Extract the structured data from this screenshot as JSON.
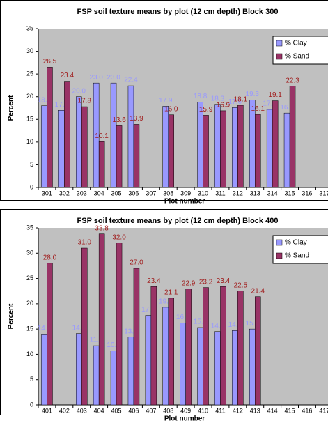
{
  "chart_data": [
    {
      "type": "bar",
      "title": "FSP soil texture means by plot (12 cm depth) Block 300",
      "x_label": "Plot number",
      "y_label": "Percent",
      "categories": [
        "301",
        "302",
        "303",
        "304",
        "305",
        "306",
        "307",
        "308",
        "309",
        "310",
        "311",
        "312",
        "313",
        "314",
        "315",
        "316",
        "317"
      ],
      "series": [
        {
          "name": "% Clay",
          "color": "#9999ff",
          "label_color": "#9999ff",
          "values": [
            18.0,
            17.0,
            20.0,
            23.0,
            23.0,
            22.4,
            null,
            17.9,
            null,
            18.8,
            18.3,
            17.6,
            19.3,
            17.2,
            16.4,
            null,
            null
          ],
          "value_labels": [
            "18.0",
            "17.0",
            "20.0",
            "23.0",
            "23.0",
            "22.4",
            null,
            "17.9",
            null,
            "18.8",
            "18.3",
            "17.6",
            "19.3",
            "17.2",
            "16.4",
            null,
            null
          ]
        },
        {
          "name": "% Sand",
          "color": "#993366",
          "label_color": "#a01c1c",
          "values": [
            26.5,
            23.4,
            17.8,
            10.1,
            13.6,
            13.9,
            null,
            16.0,
            null,
            15.9,
            16.9,
            18.1,
            16.1,
            19.1,
            22.3,
            null,
            null
          ],
          "value_labels": [
            "26.5",
            "23.4",
            "17.8",
            "10.1",
            "13.6",
            "13.9",
            null,
            "16.0",
            null,
            "15.9",
            "16.9",
            "18.1",
            "16.1",
            "19.1",
            "22.3",
            null,
            null
          ]
        }
      ],
      "ylim": [
        0,
        35
      ],
      "yticks": [
        0,
        5,
        10,
        15,
        20,
        25,
        30,
        35
      ],
      "legend": "upper-right"
    },
    {
      "type": "bar",
      "title": "FSP soil texture means by plot (12 cm depth) Block 400",
      "x_label": "Plot number",
      "y_label": "Percent",
      "categories": [
        "401",
        "402",
        "403",
        "404",
        "405",
        "406",
        "407",
        "408",
        "409",
        "410",
        "411",
        "412",
        "413",
        "414",
        "415",
        "416",
        "417"
      ],
      "series": [
        {
          "name": "% Clay",
          "color": "#9999ff",
          "label_color": "#9999ff",
          "values": [
            14.0,
            null,
            14.1,
            11.7,
            10.7,
            13.4,
            17.7,
            19.3,
            16.2,
            15.3,
            14.5,
            14.7,
            15.0,
            null,
            null,
            null,
            null
          ],
          "value_labels": [
            "14.0",
            null,
            "14.1",
            "11.7",
            "10.7",
            "13.4",
            "17.7",
            "19.3",
            "16.2",
            "15.3",
            "14.5",
            "14.7",
            "15.0",
            null,
            null,
            null,
            null
          ]
        },
        {
          "name": "% Sand",
          "color": "#993366",
          "label_color": "#a01c1c",
          "values": [
            28.0,
            null,
            31.0,
            33.8,
            32.0,
            27.0,
            23.4,
            21.1,
            22.9,
            23.2,
            23.4,
            22.5,
            21.4,
            null,
            null,
            null,
            null
          ],
          "value_labels": [
            "28.0",
            null,
            "31.0",
            "33.8",
            "32.0",
            "27.0",
            "23.4",
            "21.1",
            "22.9",
            "23.2",
            "23.4",
            "22.5",
            "21.4",
            null,
            null,
            null,
            null
          ]
        }
      ],
      "ylim": [
        0,
        35
      ],
      "yticks": [
        0,
        5,
        10,
        15,
        20,
        25,
        30,
        35
      ],
      "legend": "upper-right"
    }
  ]
}
